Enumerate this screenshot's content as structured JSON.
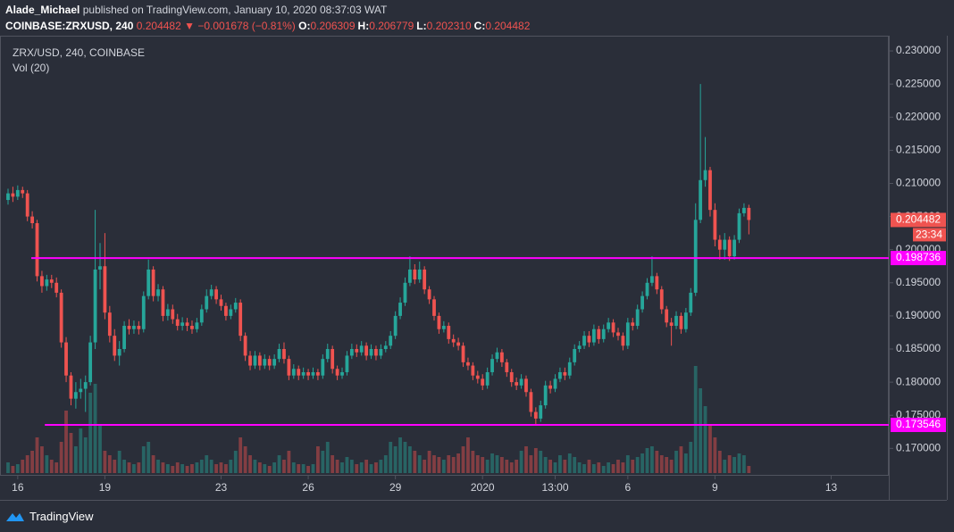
{
  "header": {
    "author": "Alade_Michael",
    "published": "published on TradingView.com, January 10, 2020 08:37:03 WAT",
    "symbol": "COINBASE:ZRXUSD, 240",
    "last": "0.204482",
    "arrow": "▼",
    "change": "−0.001678 (−0.81%)",
    "ohlc": [
      {
        "label": "O:",
        "value": "0.206309"
      },
      {
        "label": "H:",
        "value": "0.206779"
      },
      {
        "label": "L:",
        "value": "0.202310"
      },
      {
        "label": "C:",
        "value": "0.204482"
      }
    ]
  },
  "footer": {
    "brand": "TradingView"
  },
  "chart_data": {
    "type": "candlestick",
    "title": "ZRX/USD, 240, COINBASE",
    "volume_label": "Vol (20)",
    "countdown": "23:34",
    "up_color": "#26a69a",
    "down_color": "#ef5350",
    "grid": false,
    "ylim": [
      0.166,
      0.2323
    ],
    "yticks": [
      {
        "value": 0.17,
        "label": "0.170000"
      },
      {
        "value": 0.175,
        "label": "0.175000"
      },
      {
        "value": 0.18,
        "label": "0.180000"
      },
      {
        "value": 0.185,
        "label": "0.185000"
      },
      {
        "value": 0.19,
        "label": "0.190000"
      },
      {
        "value": 0.195,
        "label": "0.195000"
      },
      {
        "value": 0.2,
        "label": "0.200000"
      },
      {
        "value": 0.205,
        "label": "0.205000"
      },
      {
        "value": 0.21,
        "label": "0.210000"
      },
      {
        "value": 0.215,
        "label": "0.215000"
      },
      {
        "value": 0.22,
        "label": "0.220000"
      },
      {
        "value": 0.225,
        "label": "0.225000"
      },
      {
        "value": 0.23,
        "label": "0.230000"
      }
    ],
    "xlim": [
      -1.66,
      181.9
    ],
    "xticks": [
      {
        "value": 2,
        "label": "16"
      },
      {
        "value": 20,
        "label": "19"
      },
      {
        "value": 44,
        "label": "23"
      },
      {
        "value": 62,
        "label": "26"
      },
      {
        "value": 80,
        "label": "29"
      },
      {
        "value": 98,
        "label": "2020"
      },
      {
        "value": 113,
        "label": "13:00"
      },
      {
        "value": 128,
        "label": "6"
      },
      {
        "value": 146,
        "label": "9"
      },
      {
        "value": 170,
        "label": "13"
      }
    ],
    "price_lines": [
      {
        "value": 0.198736,
        "color": "#ff00ff",
        "start": 4.8
      },
      {
        "value": 0.173546,
        "color": "#ff00ff",
        "start": 7.6
      }
    ],
    "open": [
      0.2075,
      0.2085,
      0.208,
      0.209,
      0.2085,
      0.205,
      0.204,
      0.196,
      0.1945,
      0.1955,
      0.195,
      0.1935,
      0.186,
      0.181,
      0.1775,
      0.1785,
      0.179,
      0.18,
      0.186,
      0.197,
      0.1975,
      0.1905,
      0.187,
      0.184,
      0.185,
      0.1885,
      0.188,
      0.1885,
      0.188,
      0.193,
      0.197,
      0.193,
      0.194,
      0.19,
      0.191,
      0.1895,
      0.1885,
      0.189,
      0.1885,
      0.188,
      0.189,
      0.191,
      0.193,
      0.194,
      0.1925,
      0.1915,
      0.19,
      0.191,
      0.192,
      0.187,
      0.184,
      0.1825,
      0.184,
      0.1825,
      0.1835,
      0.1825,
      0.1835,
      0.185,
      0.1835,
      0.181,
      0.182,
      0.181,
      0.1815,
      0.181,
      0.1815,
      0.181,
      0.1835,
      0.185,
      0.182,
      0.181,
      0.1815,
      0.184,
      0.185,
      0.1845,
      0.1855,
      0.184,
      0.185,
      0.184,
      0.185,
      0.1855,
      0.187,
      0.19,
      0.192,
      0.195,
      0.197,
      0.1955,
      0.197,
      0.194,
      0.1925,
      0.19,
      0.188,
      0.1885,
      0.1865,
      0.186,
      0.1855,
      0.183,
      0.1825,
      0.181,
      0.1805,
      0.1795,
      0.1815,
      0.1835,
      0.1845,
      0.183,
      0.1815,
      0.18,
      0.1795,
      0.1805,
      0.1785,
      0.1755,
      0.1745,
      0.1765,
      0.1795,
      0.179,
      0.1805,
      0.1815,
      0.181,
      0.183,
      0.185,
      0.1855,
      0.187,
      0.186,
      0.188,
      0.1865,
      0.188,
      0.189,
      0.1875,
      0.187,
      0.1855,
      0.189,
      0.1885,
      0.191,
      0.193,
      0.195,
      0.196,
      0.194,
      0.191,
      0.189,
      0.1885,
      0.19,
      0.188,
      0.1905,
      0.1935,
      0.2045,
      0.2105,
      0.212,
      0.206,
      0.2015,
      0.2,
      0.2015,
      0.199,
      0.2015,
      0.2055,
      0.206309
    ],
    "high": [
      0.2092,
      0.2095,
      0.2097,
      0.2095,
      0.209,
      0.2058,
      0.2045,
      0.1968,
      0.1962,
      0.1962,
      0.1958,
      0.194,
      0.1868,
      0.1815,
      0.18,
      0.1805,
      0.181,
      0.187,
      0.206,
      0.201,
      0.2025,
      0.1915,
      0.188,
      0.1862,
      0.1892,
      0.1895,
      0.1893,
      0.1892,
      0.1937,
      0.1985,
      0.1975,
      0.1948,
      0.1945,
      0.1918,
      0.1917,
      0.1903,
      0.1898,
      0.1897,
      0.1893,
      0.1897,
      0.1917,
      0.194,
      0.1947,
      0.1945,
      0.1932,
      0.192,
      0.1917,
      0.1927,
      0.1925,
      0.1875,
      0.1847,
      0.1847,
      0.1845,
      0.1842,
      0.184,
      0.1842,
      0.1858,
      0.186,
      0.184,
      0.1827,
      0.1825,
      0.1822,
      0.182,
      0.1822,
      0.182,
      0.1842,
      0.1858,
      0.1855,
      0.1825,
      0.1822,
      0.1847,
      0.1858,
      0.1857,
      0.1862,
      0.186,
      0.1857,
      0.1855,
      0.1857,
      0.1862,
      0.1877,
      0.1907,
      0.1928,
      0.1958,
      0.199,
      0.1978,
      0.1982,
      0.1975,
      0.1945,
      0.193,
      0.1905,
      0.1892,
      0.189,
      0.1872,
      0.1867,
      0.186,
      0.1837,
      0.183,
      0.1817,
      0.1812,
      0.1822,
      0.1842,
      0.1852,
      0.185,
      0.1835,
      0.182,
      0.1807,
      0.1812,
      0.181,
      0.179,
      0.1762,
      0.1772,
      0.1802,
      0.1802,
      0.1812,
      0.1822,
      0.1822,
      0.1837,
      0.1857,
      0.1862,
      0.1877,
      0.1877,
      0.1887,
      0.1885,
      0.1887,
      0.1897,
      0.1895,
      0.1882,
      0.1875,
      0.1897,
      0.1897,
      0.1917,
      0.1937,
      0.1957,
      0.199,
      0.1965,
      0.1945,
      0.1915,
      0.1897,
      0.1907,
      0.1905,
      0.1912,
      0.1942,
      0.207,
      0.225,
      0.217,
      0.2125,
      0.207,
      0.2022,
      0.2025,
      0.202,
      0.2022,
      0.2062,
      0.207,
      0.206779
    ],
    "low": [
      0.2068,
      0.2072,
      0.2075,
      0.2078,
      0.2043,
      0.2032,
      0.1952,
      0.1935,
      0.1938,
      0.1942,
      0.1928,
      0.1852,
      0.18,
      0.1765,
      0.176,
      0.1775,
      0.1755,
      0.1795,
      0.185,
      0.194,
      0.1895,
      0.186,
      0.1832,
      0.1825,
      0.1845,
      0.1872,
      0.1873,
      0.1872,
      0.1875,
      0.1925,
      0.1922,
      0.1922,
      0.1892,
      0.1893,
      0.1888,
      0.1878,
      0.1878,
      0.1877,
      0.1873,
      0.1875,
      0.1885,
      0.1905,
      0.1925,
      0.1918,
      0.1908,
      0.1893,
      0.1895,
      0.1905,
      0.1862,
      0.1832,
      0.1818,
      0.182,
      0.1818,
      0.182,
      0.1818,
      0.182,
      0.183,
      0.1828,
      0.1803,
      0.1805,
      0.1803,
      0.1805,
      0.1803,
      0.1805,
      0.1803,
      0.1805,
      0.183,
      0.1813,
      0.1803,
      0.1805,
      0.181,
      0.1835,
      0.1838,
      0.184,
      0.1833,
      0.1835,
      0.1833,
      0.1835,
      0.1845,
      0.185,
      0.1865,
      0.1895,
      0.1915,
      0.1945,
      0.1948,
      0.195,
      0.1933,
      0.1918,
      0.1893,
      0.1873,
      0.1875,
      0.1858,
      0.1853,
      0.1848,
      0.1823,
      0.1818,
      0.1803,
      0.1798,
      0.1788,
      0.179,
      0.181,
      0.183,
      0.1823,
      0.1808,
      0.1793,
      0.1788,
      0.179,
      0.1778,
      0.1748,
      0.1735,
      0.174,
      0.176,
      0.1783,
      0.1785,
      0.18,
      0.1803,
      0.1805,
      0.1825,
      0.1845,
      0.185,
      0.1853,
      0.1855,
      0.1858,
      0.186,
      0.1875,
      0.1868,
      0.1863,
      0.1848,
      0.185,
      0.1878,
      0.188,
      0.1905,
      0.1925,
      0.1945,
      0.1933,
      0.1903,
      0.1883,
      0.1855,
      0.188,
      0.1873,
      0.1875,
      0.19,
      0.193,
      0.204,
      0.2095,
      0.205,
      0.2005,
      0.1985,
      0.1985,
      0.1983,
      0.1985,
      0.201,
      0.205,
      0.20231
    ],
    "close": [
      0.2085,
      0.208,
      0.209,
      0.2085,
      0.205,
      0.204,
      0.196,
      0.1945,
      0.1955,
      0.195,
      0.1935,
      0.186,
      0.181,
      0.1775,
      0.1785,
      0.179,
      0.18,
      0.186,
      0.197,
      0.1975,
      0.1905,
      0.187,
      0.184,
      0.185,
      0.1885,
      0.188,
      0.1885,
      0.188,
      0.193,
      0.197,
      0.193,
      0.194,
      0.19,
      0.191,
      0.1895,
      0.1885,
      0.189,
      0.1885,
      0.188,
      0.189,
      0.191,
      0.193,
      0.194,
      0.1925,
      0.1915,
      0.19,
      0.191,
      0.192,
      0.187,
      0.184,
      0.1825,
      0.184,
      0.1825,
      0.1835,
      0.1825,
      0.1835,
      0.185,
      0.1835,
      0.181,
      0.182,
      0.181,
      0.1815,
      0.181,
      0.1815,
      0.181,
      0.1835,
      0.185,
      0.182,
      0.181,
      0.1815,
      0.184,
      0.185,
      0.1845,
      0.1855,
      0.184,
      0.185,
      0.184,
      0.185,
      0.1855,
      0.187,
      0.19,
      0.192,
      0.195,
      0.197,
      0.1955,
      0.197,
      0.194,
      0.1925,
      0.19,
      0.188,
      0.1885,
      0.1865,
      0.186,
      0.1855,
      0.183,
      0.1825,
      0.181,
      0.1805,
      0.1795,
      0.1815,
      0.1835,
      0.1845,
      0.183,
      0.1815,
      0.18,
      0.1795,
      0.1805,
      0.1785,
      0.1755,
      0.1745,
      0.1765,
      0.1795,
      0.179,
      0.1805,
      0.1815,
      0.181,
      0.183,
      0.185,
      0.1855,
      0.187,
      0.186,
      0.188,
      0.1865,
      0.188,
      0.189,
      0.1875,
      0.187,
      0.1855,
      0.189,
      0.1885,
      0.191,
      0.193,
      0.195,
      0.196,
      0.194,
      0.191,
      0.189,
      0.1885,
      0.19,
      0.188,
      0.1905,
      0.1935,
      0.2045,
      0.2105,
      0.212,
      0.206,
      0.2015,
      0.2,
      0.2015,
      0.199,
      0.2015,
      0.2055,
      0.206309,
      0.204482
    ],
    "volume": [
      12,
      8,
      10,
      15,
      20,
      25,
      40,
      30,
      20,
      15,
      12,
      35,
      70,
      45,
      30,
      50,
      40,
      90,
      100,
      55,
      25,
      20,
      15,
      25,
      15,
      12,
      10,
      12,
      30,
      35,
      20,
      15,
      12,
      10,
      8,
      12,
      10,
      8,
      10,
      12,
      15,
      20,
      15,
      10,
      12,
      10,
      15,
      25,
      40,
      30,
      20,
      15,
      12,
      10,
      8,
      12,
      20,
      15,
      25,
      12,
      10,
      10,
      8,
      10,
      30,
      25,
      35,
      20,
      15,
      12,
      18,
      15,
      10,
      12,
      15,
      10,
      12,
      15,
      20,
      35,
      30,
      40,
      35,
      30,
      25,
      20,
      15,
      25,
      20,
      18,
      15,
      20,
      18,
      22,
      30,
      40,
      25,
      20,
      18,
      15,
      22,
      20,
      18,
      15,
      12,
      15,
      25,
      30,
      20,
      28,
      25,
      18,
      15,
      12,
      20,
      15,
      22,
      18,
      12,
      10,
      15,
      10,
      12,
      8,
      12,
      10,
      15,
      12,
      20,
      15,
      18,
      22,
      28,
      30,
      25,
      20,
      18,
      15,
      25,
      30,
      22,
      35,
      120,
      95,
      75,
      55,
      40,
      25,
      15,
      20,
      18,
      22,
      20,
      8
    ]
  }
}
